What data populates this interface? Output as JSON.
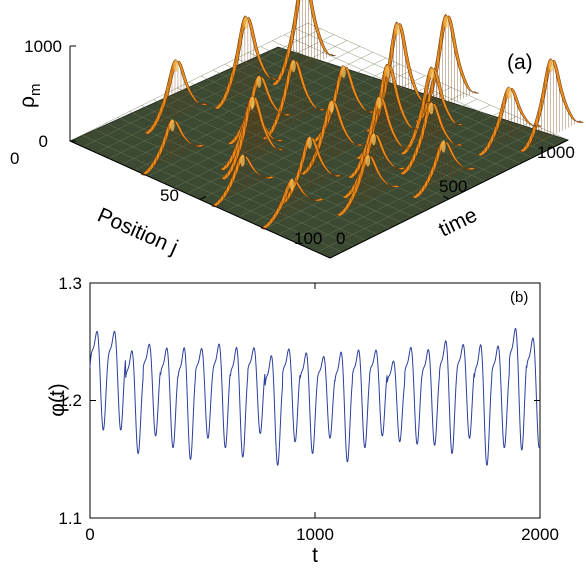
{
  "chart_data": [
    {
      "type": "surface",
      "panel_label": "(a)",
      "zlabel": "ρ",
      "zlabel_sub": "m",
      "xlabel": "Position j",
      "ylabel": "time",
      "xlim": [
        0,
        100
      ],
      "ylim": [
        0,
        1000
      ],
      "zlim": [
        0,
        1000
      ],
      "xticks": [
        "0",
        "50",
        "100"
      ],
      "yticks": [
        "0",
        "500",
        "1000"
      ],
      "zticks": [
        "0",
        "1000"
      ],
      "surface_color": "#e88a1c",
      "floor_color": "#3d4a33",
      "peaks": [
        {
          "j": 12,
          "t": 310,
          "h": 620
        },
        {
          "j": 16,
          "t": 560,
          "h": 820
        },
        {
          "j": 18,
          "t": 780,
          "h": 1000
        },
        {
          "j": 28,
          "t": 120,
          "h": 420
        },
        {
          "j": 33,
          "t": 430,
          "h": 560
        },
        {
          "j": 38,
          "t": 520,
          "h": 680
        },
        {
          "j": 42,
          "t": 300,
          "h": 600
        },
        {
          "j": 46,
          "t": 260,
          "h": 720
        },
        {
          "j": 49,
          "t": 610,
          "h": 640
        },
        {
          "j": 55,
          "t": 120,
          "h": 380
        },
        {
          "j": 56,
          "t": 760,
          "h": 1000
        },
        {
          "j": 60,
          "t": 440,
          "h": 620
        },
        {
          "j": 62,
          "t": 900,
          "h": 980
        },
        {
          "j": 65,
          "t": 620,
          "h": 840
        },
        {
          "j": 68,
          "t": 260,
          "h": 560
        },
        {
          "j": 71,
          "t": 520,
          "h": 700
        },
        {
          "j": 72,
          "t": 730,
          "h": 760
        },
        {
          "j": 74,
          "t": 120,
          "h": 360
        },
        {
          "j": 78,
          "t": 420,
          "h": 520
        },
        {
          "j": 80,
          "t": 640,
          "h": 600
        },
        {
          "j": 84,
          "t": 330,
          "h": 480
        },
        {
          "j": 88,
          "t": 880,
          "h": 560
        },
        {
          "j": 92,
          "t": 560,
          "h": 440
        },
        {
          "j": 95,
          "t": 980,
          "h": 820
        }
      ]
    },
    {
      "type": "line",
      "panel_label": "(b)",
      "xlabel": "t",
      "ylabel": "φ(t)",
      "xlim": [
        0,
        2000
      ],
      "ylim": [
        1.1,
        1.3
      ],
      "xticks": [
        "0",
        "1000",
        "2000"
      ],
      "yticks": [
        "1.1",
        "1.2",
        "1.3"
      ],
      "line_color": "#2b3f9c",
      "period": 77.5,
      "series": [
        {
          "peaks": [
            1.274,
            1.258,
            1.262,
            1.26,
            1.262,
            1.258,
            1.264,
            1.262,
            1.258,
            1.255,
            1.258,
            1.256,
            1.25,
            1.258,
            1.258,
            1.256,
            1.246,
            1.26,
            1.258,
            1.268,
            1.262,
            1.266,
            1.262,
            1.28,
            1.27,
            1.262,
            1.284,
            1.26
          ],
          "troughs": [
            1.175,
            1.155,
            1.17,
            1.16,
            1.15,
            1.168,
            1.16,
            1.152,
            1.172,
            1.145,
            1.165,
            1.155,
            1.168,
            1.148,
            1.16,
            1.17,
            1.165,
            1.163,
            1.162,
            1.155,
            1.168,
            1.145,
            1.16,
            1.158,
            1.16,
            1.15,
            1.143,
            1.188
          ]
        }
      ]
    }
  ]
}
